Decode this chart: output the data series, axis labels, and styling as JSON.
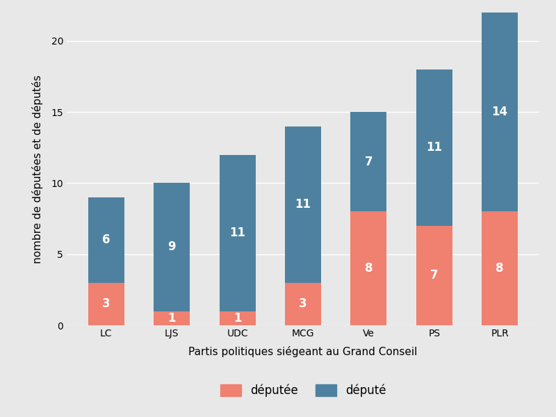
{
  "parties": [
    "LC",
    "LJS",
    "UDC",
    "MCG",
    "Ve",
    "PS",
    "PLR"
  ],
  "deputee": [
    3,
    1,
    1,
    3,
    8,
    7,
    8
  ],
  "depute": [
    6,
    9,
    11,
    11,
    7,
    11,
    14
  ],
  "color_deputee": "#F08070",
  "color_depute": "#4E81A0",
  "xlabel": "Partis politiques siégeant au Grand Conseil",
  "ylabel": "nombre de députées et de députés",
  "legend_deputee": "députée",
  "legend_depute": "député",
  "ylim": [
    0,
    22
  ],
  "yticks": [
    0,
    5,
    10,
    15,
    20
  ],
  "background_color": "#E8E8E8",
  "grid_color": "#FFFFFF",
  "bar_width": 0.55,
  "label_fontsize": 12,
  "axis_label_fontsize": 11,
  "tick_fontsize": 10
}
